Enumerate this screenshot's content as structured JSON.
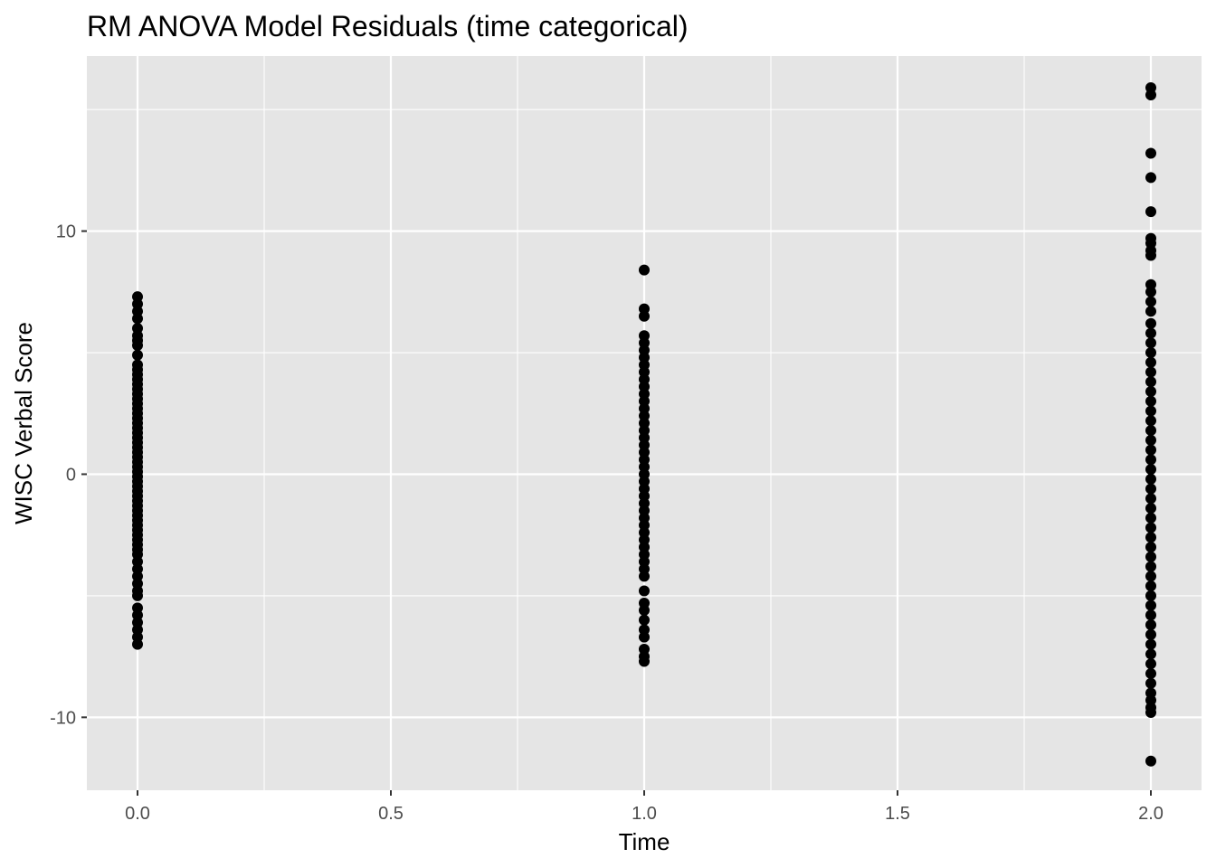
{
  "chart_data": {
    "type": "scatter",
    "title": "RM ANOVA Model Residuals (time categorical)",
    "xlabel": "Time",
    "ylabel": "WISC Verbal Score",
    "xlim": [
      -0.1,
      2.1
    ],
    "ylim": [
      -13.0,
      17.2
    ],
    "x_ticks": [
      0.0,
      0.5,
      1.0,
      1.5,
      2.0
    ],
    "x_tick_labels": [
      "0.0",
      "0.5",
      "1.0",
      "1.5",
      "2.0"
    ],
    "x_minor_ticks": [
      0.25,
      0.75,
      1.25,
      1.75
    ],
    "y_ticks": [
      -10,
      0,
      10
    ],
    "y_tick_labels": [
      "-10",
      "0",
      "10"
    ],
    "y_minor_ticks": [
      -5,
      5,
      15
    ],
    "grid": true,
    "legend": "none",
    "colors": {
      "panel_background": "#e5e5e5",
      "grid_line": "#ffffff",
      "point": "#000000",
      "tick_label": "#4d4d4d"
    },
    "series": [
      {
        "x": 0,
        "y": [
          7.3,
          7.0,
          6.7,
          6.4,
          6.0,
          5.7,
          5.5,
          5.3,
          4.9,
          4.5,
          4.3,
          4.1,
          3.9,
          3.7,
          3.5,
          3.3,
          3.1,
          2.9,
          2.7,
          2.5,
          2.3,
          2.1,
          1.9,
          1.7,
          1.5,
          1.3,
          1.1,
          0.9,
          0.7,
          0.5,
          0.3,
          0.1,
          -0.1,
          -0.3,
          -0.5,
          -0.7,
          -0.9,
          -1.1,
          -1.3,
          -1.5,
          -1.7,
          -1.9,
          -2.1,
          -2.3,
          -2.5,
          -2.7,
          -2.9,
          -3.1,
          -3.3,
          -3.6,
          -3.9,
          -4.2,
          -4.5,
          -4.8,
          -5.0,
          -5.5,
          -5.8,
          -6.1,
          -6.4,
          -6.7,
          -7.0
        ]
      },
      {
        "x": 1,
        "y": [
          8.4,
          6.8,
          6.5,
          5.7,
          5.4,
          5.1,
          4.8,
          4.5,
          4.2,
          3.9,
          3.6,
          3.3,
          3.0,
          2.7,
          2.4,
          2.1,
          1.8,
          1.5,
          1.2,
          0.9,
          0.6,
          0.3,
          0.0,
          -0.3,
          -0.6,
          -0.9,
          -1.2,
          -1.5,
          -1.8,
          -2.1,
          -2.4,
          -2.7,
          -3.0,
          -3.3,
          -3.6,
          -3.9,
          -4.2,
          -4.8,
          -5.3,
          -5.6,
          -6.0,
          -6.4,
          -6.7,
          -7.2,
          -7.5,
          -7.7
        ]
      },
      {
        "x": 2,
        "y": [
          15.9,
          15.6,
          13.2,
          12.2,
          10.8,
          9.7,
          9.5,
          9.2,
          9.0,
          7.8,
          7.5,
          7.1,
          6.7,
          6.2,
          5.8,
          5.4,
          5.0,
          4.6,
          4.2,
          3.8,
          3.4,
          3.0,
          2.6,
          2.2,
          1.8,
          1.4,
          1.0,
          0.6,
          0.2,
          -0.2,
          -0.6,
          -1.0,
          -1.4,
          -1.8,
          -2.2,
          -2.6,
          -3.0,
          -3.4,
          -3.8,
          -4.2,
          -4.6,
          -5.0,
          -5.4,
          -5.8,
          -6.2,
          -6.6,
          -7.0,
          -7.4,
          -7.8,
          -8.2,
          -8.6,
          -9.0,
          -9.3,
          -9.6,
          -9.8,
          -11.8
        ]
      }
    ]
  }
}
